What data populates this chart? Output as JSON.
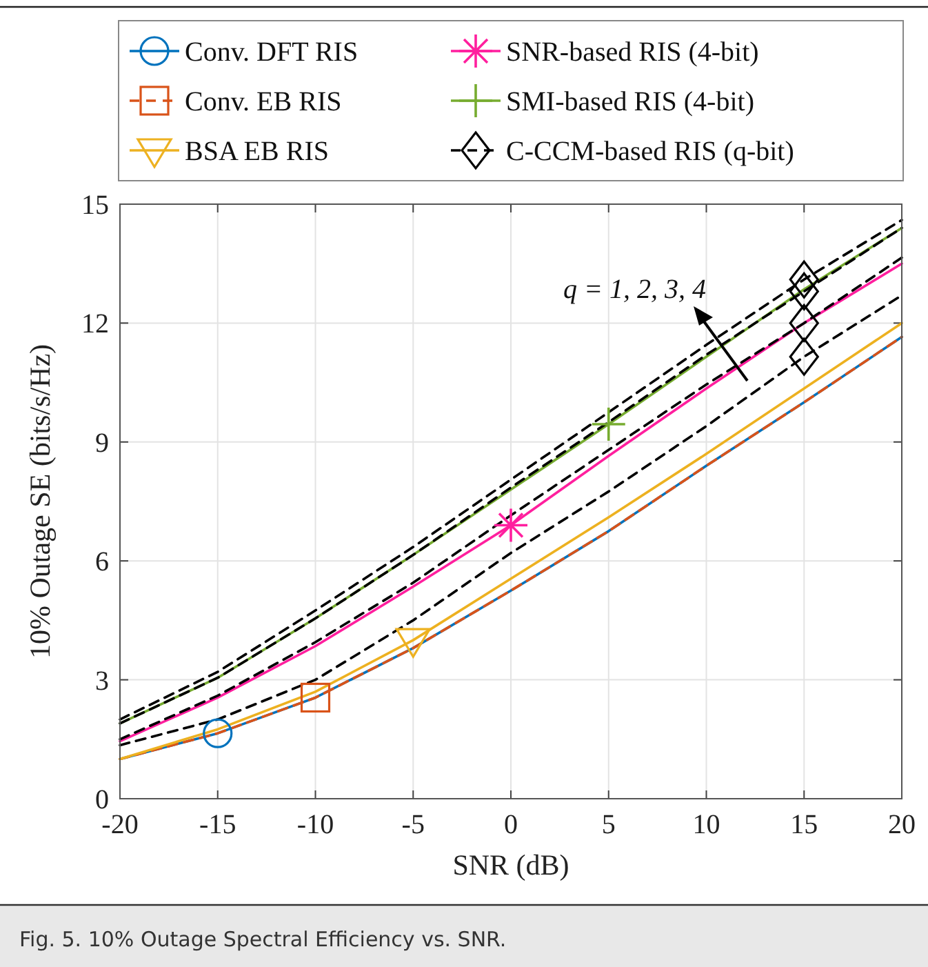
{
  "chart_data": {
    "type": "line",
    "xlabel": "SNR (dB)",
    "ylabel": "10% Outage SE (bits/s/Hz)",
    "x": [
      -20,
      -15,
      -10,
      -5,
      0,
      5,
      10,
      15,
      20
    ],
    "series": [
      {
        "name": "Conv. DFT RIS",
        "color": "#0072bd",
        "line_style": "solid",
        "values": [
          1.0,
          1.65,
          2.55,
          3.8,
          5.25,
          6.75,
          8.4,
          10.0,
          11.65
        ]
      },
      {
        "name": "Conv. EB RIS",
        "color": "#d95319",
        "line_style": "dashed",
        "values": [
          1.0,
          1.65,
          2.55,
          3.8,
          5.25,
          6.75,
          8.4,
          10.0,
          11.65
        ]
      },
      {
        "name": "BSA EB RIS",
        "color": "#edb120",
        "line_style": "solid",
        "values": [
          1.0,
          1.75,
          2.7,
          4.0,
          5.55,
          7.1,
          8.7,
          10.35,
          12.0
        ]
      },
      {
        "name": "SNR-based RIS (4-bit)",
        "color": "#ff1f9e",
        "line_style": "solid",
        "values": [
          1.45,
          2.55,
          3.85,
          5.35,
          6.9,
          8.65,
          10.35,
          12.0,
          13.5
        ]
      },
      {
        "name": "SMI-based RIS (4-bit)",
        "color": "#77ac30",
        "line_style": "solid",
        "values": [
          1.9,
          3.05,
          4.55,
          6.15,
          7.8,
          9.45,
          11.15,
          12.85,
          14.4
        ]
      },
      {
        "name": "C-CCM-based RIS (q-bit)",
        "color": "#000000",
        "line_style": "dashed",
        "values": [
          1.35,
          2.0,
          3.0,
          4.5,
          6.2,
          7.75,
          9.4,
          11.15,
          12.7
        ]
      },
      {
        "color": "#000000",
        "line_style": "dashed",
        "values": [
          1.5,
          2.6,
          3.95,
          5.45,
          7.15,
          8.8,
          10.45,
          12.0,
          13.65
        ]
      },
      {
        "color": "#000000",
        "line_style": "dashed",
        "values": [
          1.9,
          3.05,
          4.55,
          6.15,
          7.85,
          9.5,
          11.2,
          12.8,
          14.4
        ]
      },
      {
        "color": "#000000",
        "line_style": "dashed",
        "values": [
          2.0,
          3.2,
          4.75,
          6.35,
          8.05,
          9.75,
          11.45,
          13.1,
          14.6
        ]
      },
      {
        "type": "scatter",
        "color": "#0072bd",
        "marker": "circle",
        "x": [
          -15
        ],
        "values": [
          1.65
        ]
      },
      {
        "type": "scatter",
        "color": "#d95319",
        "marker": "square",
        "x": [
          -10
        ],
        "values": [
          2.55
        ]
      },
      {
        "type": "scatter",
        "color": "#edb120",
        "marker": "triangle",
        "x": [
          -5
        ],
        "values": [
          4.0
        ]
      },
      {
        "type": "scatter",
        "color": "#ff1f9e",
        "marker": "star",
        "x": [
          0
        ],
        "values": [
          6.9
        ]
      },
      {
        "type": "scatter",
        "color": "#77ac30",
        "marker": "cross",
        "x": [
          5
        ],
        "values": [
          9.45
        ]
      },
      {
        "type": "scatter",
        "color": "#000000",
        "marker": "diamond",
        "x": [
          15,
          15,
          15,
          15
        ],
        "values": [
          11.15,
          12.0,
          12.8,
          13.1
        ]
      }
    ],
    "xlim": [
      -20,
      20
    ],
    "xticks": [
      -20,
      -15,
      -10,
      -5,
      0,
      5,
      10,
      15,
      20
    ],
    "ylim": [
      0,
      15
    ],
    "yticks": [
      0,
      3,
      6,
      9,
      12,
      15
    ],
    "grid": true,
    "legend": "top",
    "annotations": [
      "q = 1, 2, 3, 4",
      "Fig. 5.  10% Outage Spectral Efficiency vs. SNR."
    ]
  }
}
